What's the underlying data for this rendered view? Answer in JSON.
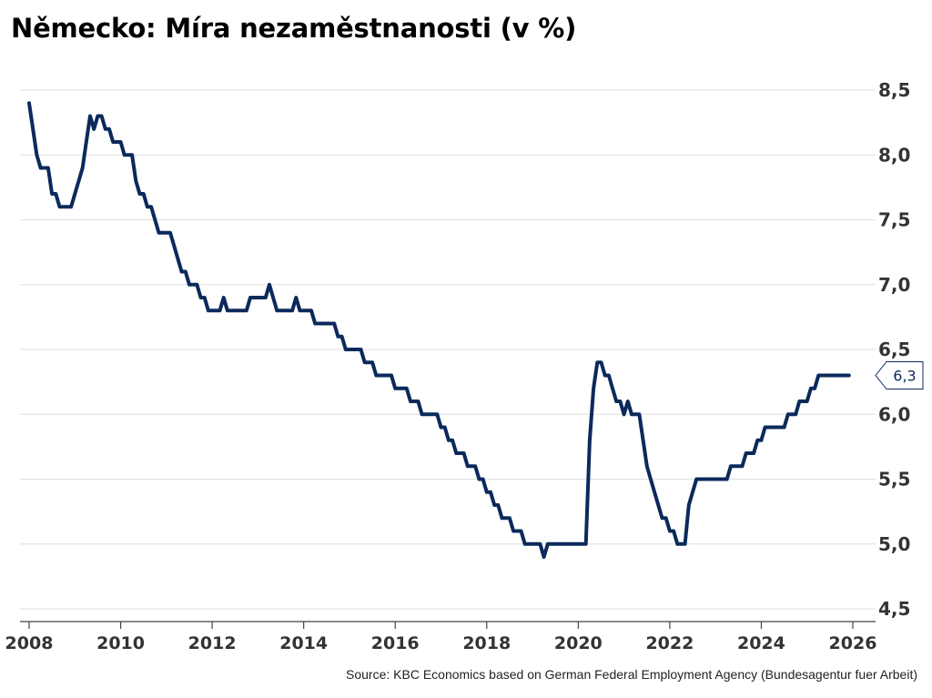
{
  "title": "Německo: Míra nezaměstnanosti (v %)",
  "source": "Source: KBC Economics based on German Federal Employment Agency (Bundesagentur fuer Arbeit)",
  "colors": {
    "line": "#0b2a5b",
    "grid": "#dedede",
    "axis": "#444444",
    "text": "#333333"
  },
  "chart_data": {
    "type": "line",
    "title": "Německo: Míra nezaměstnanosti (v %)",
    "xlabel": "",
    "ylabel": "",
    "xlim": [
      "2008-01",
      "2026-01"
    ],
    "ylim": [
      4.5,
      8.5
    ],
    "x_ticks": [
      "2008",
      "2010",
      "2012",
      "2014",
      "2016",
      "2018",
      "2020",
      "2022",
      "2024",
      "2026"
    ],
    "y_ticks": [
      "4,5",
      "5,0",
      "5,5",
      "6,0",
      "6,5",
      "7,0",
      "7,5",
      "8,0",
      "8,5"
    ],
    "y_tick_values": [
      4.5,
      5.0,
      5.5,
      6.0,
      6.5,
      7.0,
      7.5,
      8.0,
      8.5
    ],
    "grid": "horizontal",
    "last_value_label": "6,3",
    "series": [
      {
        "name": "",
        "color": "#0b2a5b",
        "points": [
          [
            "2008-01",
            8.4
          ],
          [
            "2008-02",
            8.2
          ],
          [
            "2008-03",
            8.0
          ],
          [
            "2008-04",
            7.9
          ],
          [
            "2008-05",
            7.9
          ],
          [
            "2008-06",
            7.9
          ],
          [
            "2008-07",
            7.7
          ],
          [
            "2008-08",
            7.7
          ],
          [
            "2008-09",
            7.6
          ],
          [
            "2008-10",
            7.6
          ],
          [
            "2008-11",
            7.6
          ],
          [
            "2008-12",
            7.6
          ],
          [
            "2009-01",
            7.7
          ],
          [
            "2009-02",
            7.8
          ],
          [
            "2009-03",
            7.9
          ],
          [
            "2009-04",
            8.1
          ],
          [
            "2009-05",
            8.3
          ],
          [
            "2009-06",
            8.2
          ],
          [
            "2009-07",
            8.3
          ],
          [
            "2009-08",
            8.3
          ],
          [
            "2009-09",
            8.2
          ],
          [
            "2009-10",
            8.2
          ],
          [
            "2009-11",
            8.1
          ],
          [
            "2009-12",
            8.1
          ],
          [
            "2010-01",
            8.1
          ],
          [
            "2010-02",
            8.0
          ],
          [
            "2010-03",
            8.0
          ],
          [
            "2010-04",
            8.0
          ],
          [
            "2010-05",
            7.8
          ],
          [
            "2010-06",
            7.7
          ],
          [
            "2010-07",
            7.7
          ],
          [
            "2010-08",
            7.6
          ],
          [
            "2010-09",
            7.6
          ],
          [
            "2010-10",
            7.5
          ],
          [
            "2010-11",
            7.4
          ],
          [
            "2010-12",
            7.4
          ],
          [
            "2011-01",
            7.4
          ],
          [
            "2011-02",
            7.4
          ],
          [
            "2011-03",
            7.3
          ],
          [
            "2011-04",
            7.2
          ],
          [
            "2011-05",
            7.1
          ],
          [
            "2011-06",
            7.1
          ],
          [
            "2011-07",
            7.0
          ],
          [
            "2011-08",
            7.0
          ],
          [
            "2011-09",
            7.0
          ],
          [
            "2011-10",
            6.9
          ],
          [
            "2011-11",
            6.9
          ],
          [
            "2011-12",
            6.8
          ],
          [
            "2012-01",
            6.8
          ],
          [
            "2012-02",
            6.8
          ],
          [
            "2012-03",
            6.8
          ],
          [
            "2012-04",
            6.9
          ],
          [
            "2012-05",
            6.8
          ],
          [
            "2012-06",
            6.8
          ],
          [
            "2012-07",
            6.8
          ],
          [
            "2012-08",
            6.8
          ],
          [
            "2012-09",
            6.8
          ],
          [
            "2012-10",
            6.8
          ],
          [
            "2012-11",
            6.9
          ],
          [
            "2012-12",
            6.9
          ],
          [
            "2013-01",
            6.9
          ],
          [
            "2013-02",
            6.9
          ],
          [
            "2013-03",
            6.9
          ],
          [
            "2013-04",
            7.0
          ],
          [
            "2013-05",
            6.9
          ],
          [
            "2013-06",
            6.8
          ],
          [
            "2013-07",
            6.8
          ],
          [
            "2013-08",
            6.8
          ],
          [
            "2013-09",
            6.8
          ],
          [
            "2013-10",
            6.8
          ],
          [
            "2013-11",
            6.9
          ],
          [
            "2013-12",
            6.8
          ],
          [
            "2014-01",
            6.8
          ],
          [
            "2014-02",
            6.8
          ],
          [
            "2014-03",
            6.8
          ],
          [
            "2014-04",
            6.7
          ],
          [
            "2014-05",
            6.7
          ],
          [
            "2014-06",
            6.7
          ],
          [
            "2014-07",
            6.7
          ],
          [
            "2014-08",
            6.7
          ],
          [
            "2014-09",
            6.7
          ],
          [
            "2014-10",
            6.6
          ],
          [
            "2014-11",
            6.6
          ],
          [
            "2014-12",
            6.5
          ],
          [
            "2015-01",
            6.5
          ],
          [
            "2015-02",
            6.5
          ],
          [
            "2015-03",
            6.5
          ],
          [
            "2015-04",
            6.5
          ],
          [
            "2015-05",
            6.4
          ],
          [
            "2015-06",
            6.4
          ],
          [
            "2015-07",
            6.4
          ],
          [
            "2015-08",
            6.3
          ],
          [
            "2015-09",
            6.3
          ],
          [
            "2015-10",
            6.3
          ],
          [
            "2015-11",
            6.3
          ],
          [
            "2015-12",
            6.3
          ],
          [
            "2016-01",
            6.2
          ],
          [
            "2016-02",
            6.2
          ],
          [
            "2016-03",
            6.2
          ],
          [
            "2016-04",
            6.2
          ],
          [
            "2016-05",
            6.1
          ],
          [
            "2016-06",
            6.1
          ],
          [
            "2016-07",
            6.1
          ],
          [
            "2016-08",
            6.0
          ],
          [
            "2016-09",
            6.0
          ],
          [
            "2016-10",
            6.0
          ],
          [
            "2016-11",
            6.0
          ],
          [
            "2016-12",
            6.0
          ],
          [
            "2017-01",
            5.9
          ],
          [
            "2017-02",
            5.9
          ],
          [
            "2017-03",
            5.8
          ],
          [
            "2017-04",
            5.8
          ],
          [
            "2017-05",
            5.7
          ],
          [
            "2017-06",
            5.7
          ],
          [
            "2017-07",
            5.7
          ],
          [
            "2017-08",
            5.6
          ],
          [
            "2017-09",
            5.6
          ],
          [
            "2017-10",
            5.6
          ],
          [
            "2017-11",
            5.5
          ],
          [
            "2017-12",
            5.5
          ],
          [
            "2018-01",
            5.4
          ],
          [
            "2018-02",
            5.4
          ],
          [
            "2018-03",
            5.3
          ],
          [
            "2018-04",
            5.3
          ],
          [
            "2018-05",
            5.2
          ],
          [
            "2018-06",
            5.2
          ],
          [
            "2018-07",
            5.2
          ],
          [
            "2018-08",
            5.1
          ],
          [
            "2018-09",
            5.1
          ],
          [
            "2018-10",
            5.1
          ],
          [
            "2018-11",
            5.0
          ],
          [
            "2018-12",
            5.0
          ],
          [
            "2019-01",
            5.0
          ],
          [
            "2019-02",
            5.0
          ],
          [
            "2019-03",
            5.0
          ],
          [
            "2019-04",
            4.9
          ],
          [
            "2019-05",
            5.0
          ],
          [
            "2019-06",
            5.0
          ],
          [
            "2019-07",
            5.0
          ],
          [
            "2019-08",
            5.0
          ],
          [
            "2019-09",
            5.0
          ],
          [
            "2019-10",
            5.0
          ],
          [
            "2019-11",
            5.0
          ],
          [
            "2019-12",
            5.0
          ],
          [
            "2020-01",
            5.0
          ],
          [
            "2020-02",
            5.0
          ],
          [
            "2020-03",
            5.0
          ],
          [
            "2020-04",
            5.8
          ],
          [
            "2020-05",
            6.2
          ],
          [
            "2020-06",
            6.4
          ],
          [
            "2020-07",
            6.4
          ],
          [
            "2020-08",
            6.3
          ],
          [
            "2020-09",
            6.3
          ],
          [
            "2020-10",
            6.2
          ],
          [
            "2020-11",
            6.1
          ],
          [
            "2020-12",
            6.1
          ],
          [
            "2021-01",
            6.0
          ],
          [
            "2021-02",
            6.1
          ],
          [
            "2021-03",
            6.0
          ],
          [
            "2021-04",
            6.0
          ],
          [
            "2021-05",
            6.0
          ],
          [
            "2021-06",
            5.8
          ],
          [
            "2021-07",
            5.6
          ],
          [
            "2021-08",
            5.5
          ],
          [
            "2021-09",
            5.4
          ],
          [
            "2021-10",
            5.3
          ],
          [
            "2021-11",
            5.2
          ],
          [
            "2021-12",
            5.2
          ],
          [
            "2022-01",
            5.1
          ],
          [
            "2022-02",
            5.1
          ],
          [
            "2022-03",
            5.0
          ],
          [
            "2022-04",
            5.0
          ],
          [
            "2022-05",
            5.0
          ],
          [
            "2022-06",
            5.3
          ],
          [
            "2022-07",
            5.4
          ],
          [
            "2022-08",
            5.5
          ],
          [
            "2022-09",
            5.5
          ],
          [
            "2022-10",
            5.5
          ],
          [
            "2022-11",
            5.5
          ],
          [
            "2022-12",
            5.5
          ],
          [
            "2023-01",
            5.5
          ],
          [
            "2023-02",
            5.5
          ],
          [
            "2023-03",
            5.5
          ],
          [
            "2023-04",
            5.5
          ],
          [
            "2023-05",
            5.6
          ],
          [
            "2023-06",
            5.6
          ],
          [
            "2023-07",
            5.6
          ],
          [
            "2023-08",
            5.6
          ],
          [
            "2023-09",
            5.7
          ],
          [
            "2023-10",
            5.7
          ],
          [
            "2023-11",
            5.7
          ],
          [
            "2023-12",
            5.8
          ],
          [
            "2024-01",
            5.8
          ],
          [
            "2024-02",
            5.9
          ],
          [
            "2024-03",
            5.9
          ],
          [
            "2024-04",
            5.9
          ],
          [
            "2024-05",
            5.9
          ],
          [
            "2024-06",
            5.9
          ],
          [
            "2024-07",
            5.9
          ],
          [
            "2024-08",
            6.0
          ],
          [
            "2024-09",
            6.0
          ],
          [
            "2024-10",
            6.0
          ],
          [
            "2024-11",
            6.1
          ],
          [
            "2024-12",
            6.1
          ],
          [
            "2025-01",
            6.1
          ],
          [
            "2025-02",
            6.2
          ],
          [
            "2025-03",
            6.2
          ],
          [
            "2025-04",
            6.3
          ],
          [
            "2025-05",
            6.3
          ],
          [
            "2025-06",
            6.3
          ],
          [
            "2025-07",
            6.3
          ],
          [
            "2025-08",
            6.3
          ],
          [
            "2025-09",
            6.3
          ],
          [
            "2025-10",
            6.3
          ],
          [
            "2025-11",
            6.3
          ],
          [
            "2025-12",
            6.3
          ]
        ]
      }
    ]
  }
}
